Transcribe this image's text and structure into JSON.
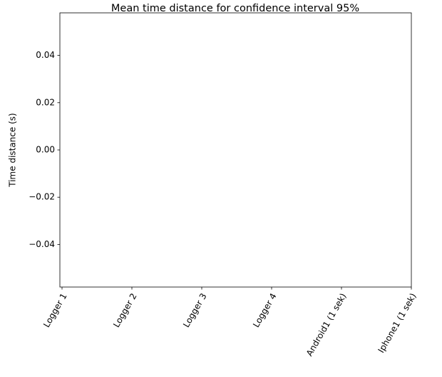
{
  "chart_data": {
    "type": "bar",
    "title": "Mean time distance for confidence interval 95%",
    "y_label": "Time distance (s)",
    "categories": [
      "Logger 1",
      "Logger 2",
      "Logger 3",
      "Logger 4",
      "Android1 (1 sek)",
      "Iphone1 (1 sek)"
    ],
    "ylim": [
      -0.058,
      0.058
    ],
    "yticks": [
      {
        "value": -0.04,
        "label": "−0.04"
      },
      {
        "value": -0.02,
        "label": "−0.02"
      },
      {
        "value": 0,
        "label": "0.00"
      },
      0.02,
      0.04
    ],
    "grid": false
  }
}
